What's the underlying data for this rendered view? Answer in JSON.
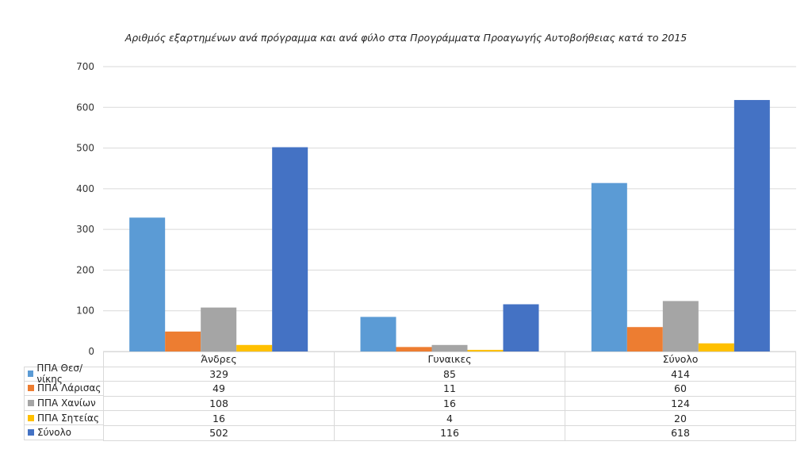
{
  "chart_data": {
    "type": "bar",
    "title": "Αριθμός εξαρτημένων ανά πρόγραμμα και ανά φύλο στα Προγράμματα Προαγωγής Αυτοβοήθειας κατά το 2015",
    "categories": [
      "Άνδρες",
      "Γυναικες",
      "Σύνολο"
    ],
    "series": [
      {
        "name": "ΠΠΑ Θεσ/νίκης",
        "color": "#5b9bd5",
        "values": [
          329,
          85,
          414
        ]
      },
      {
        "name": "ΠΠΑ Λάρισας",
        "color": "#ed7d31",
        "values": [
          49,
          11,
          60
        ]
      },
      {
        "name": "ΠΠΑ Χανίων",
        "color": "#a5a5a5",
        "values": [
          108,
          16,
          124
        ]
      },
      {
        "name": "ΠΠΑ Σητείας",
        "color": "#ffc000",
        "values": [
          16,
          4,
          20
        ]
      },
      {
        "name": "Σύνολο",
        "color": "#4472c4",
        "values": [
          502,
          116,
          618
        ]
      }
    ],
    "ylim": [
      0,
      700
    ],
    "yticks": [
      0,
      100,
      200,
      300,
      400,
      500,
      600,
      700
    ],
    "grid": true,
    "legend": "data table"
  }
}
